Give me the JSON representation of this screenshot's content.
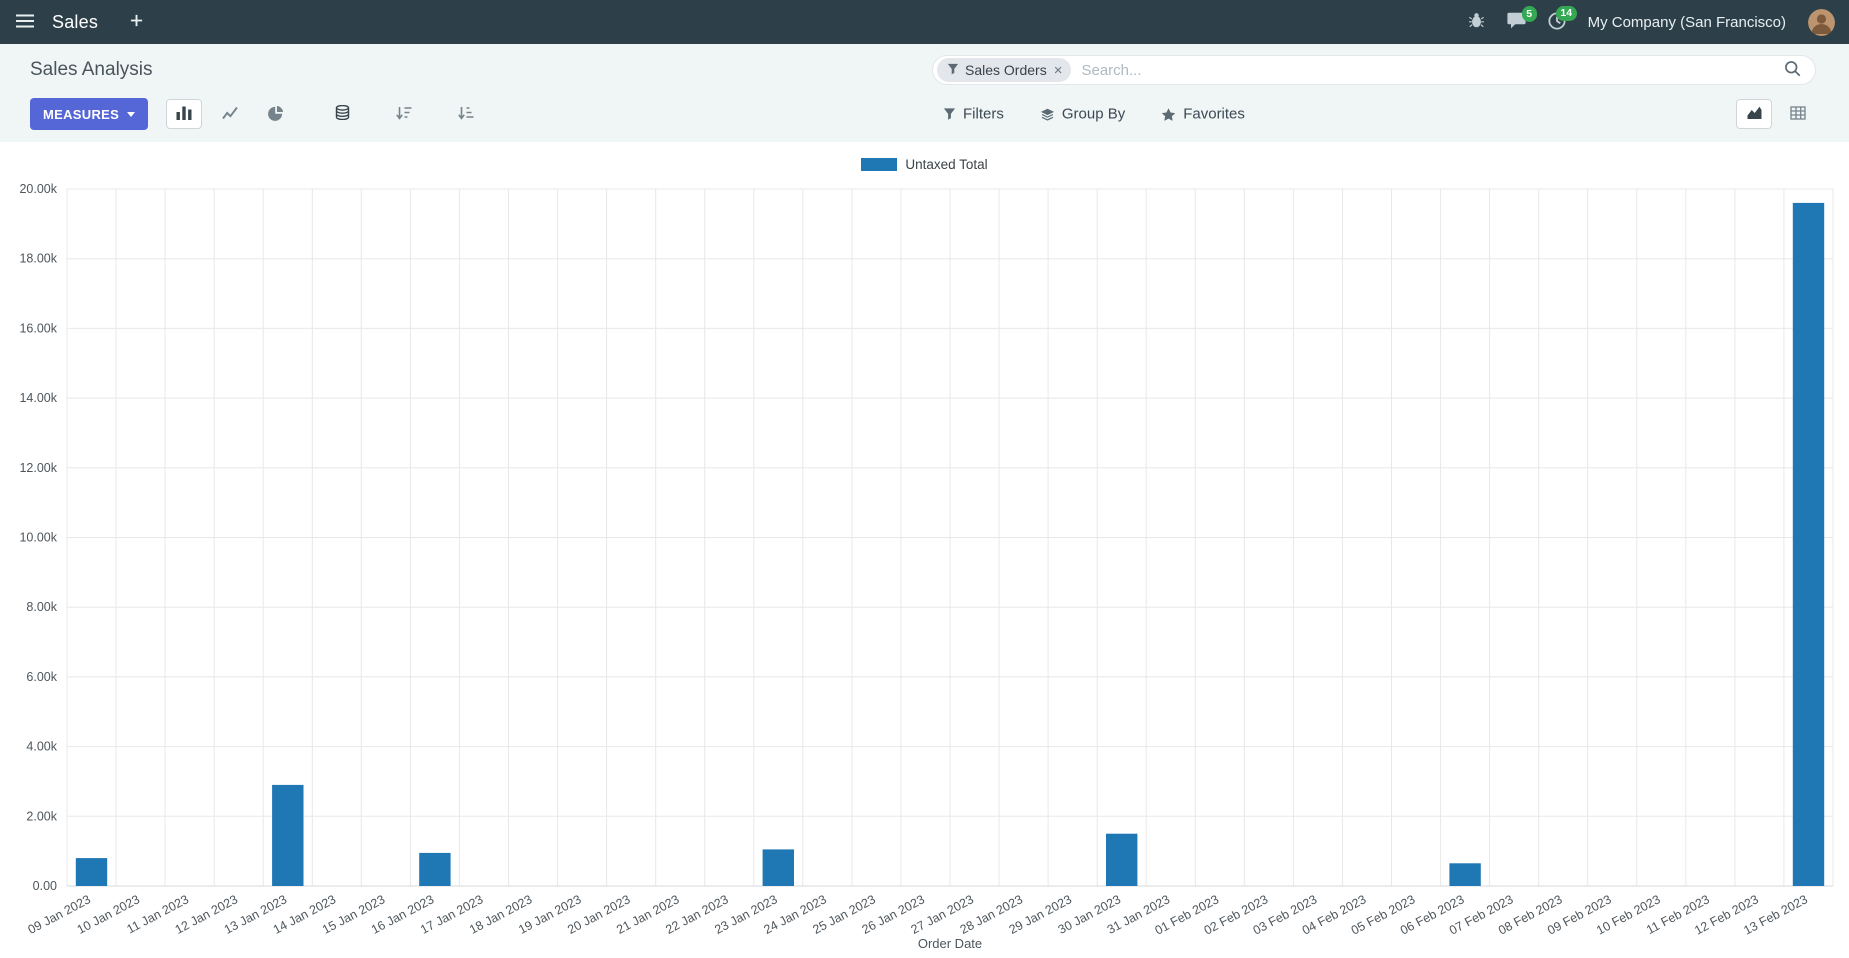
{
  "navbar": {
    "app_title": "Sales",
    "company_name": "My Company (San Francisco)",
    "messages_badge": "5",
    "activities_badge": "14"
  },
  "control_panel": {
    "title": "Sales Analysis",
    "search": {
      "facet_label": "Sales Orders",
      "facet_remove": "×",
      "placeholder": "Search..."
    },
    "toolbar": {
      "measures_label": "MEASURES",
      "filters_label": "Filters",
      "group_by_label": "Group By",
      "favorites_label": "Favorites"
    }
  },
  "colors": {
    "navbar_bg": "#2d4049",
    "primary_button": "#5566d6",
    "badge_green": "#34a853",
    "bar_color": "#1f77b4"
  },
  "chart_data": {
    "type": "bar",
    "title": "",
    "xlabel": "Order Date",
    "ylabel": "",
    "ylim": [
      0,
      20000
    ],
    "y_tick_step": 2000,
    "grid": true,
    "legend_position": "top",
    "categories": [
      "09 Jan 2023",
      "10 Jan 2023",
      "11 Jan 2023",
      "12 Jan 2023",
      "13 Jan 2023",
      "14 Jan 2023",
      "15 Jan 2023",
      "16 Jan 2023",
      "17 Jan 2023",
      "18 Jan 2023",
      "19 Jan 2023",
      "20 Jan 2023",
      "21 Jan 2023",
      "22 Jan 2023",
      "23 Jan 2023",
      "24 Jan 2023",
      "25 Jan 2023",
      "26 Jan 2023",
      "27 Jan 2023",
      "28 Jan 2023",
      "29 Jan 2023",
      "30 Jan 2023",
      "31 Jan 2023",
      "01 Feb 2023",
      "02 Feb 2023",
      "03 Feb 2023",
      "04 Feb 2023",
      "05 Feb 2023",
      "06 Feb 2023",
      "07 Feb 2023",
      "08 Feb 2023",
      "09 Feb 2023",
      "10 Feb 2023",
      "11 Feb 2023",
      "12 Feb 2023",
      "13 Feb 2023"
    ],
    "series": [
      {
        "name": "Untaxed Total",
        "color": "#1f77b4",
        "values": [
          800,
          0,
          0,
          0,
          2900,
          0,
          0,
          950,
          0,
          0,
          0,
          0,
          0,
          0,
          1050,
          0,
          0,
          0,
          0,
          0,
          0,
          1500,
          0,
          0,
          0,
          0,
          0,
          0,
          650,
          0,
          0,
          0,
          0,
          0,
          0,
          19600
        ]
      }
    ]
  }
}
